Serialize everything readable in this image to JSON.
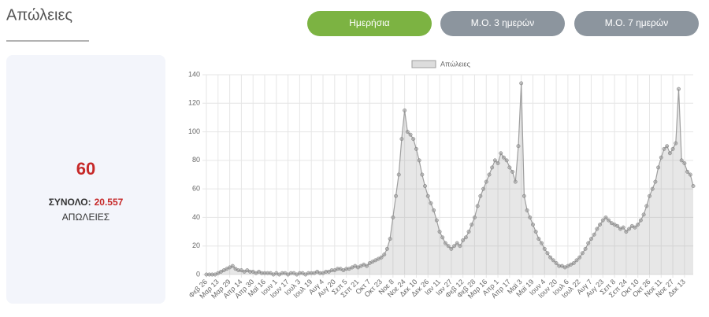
{
  "header": {
    "title": "Απώλειες"
  },
  "buttons": [
    {
      "label": "Ημερήσια",
      "active": true
    },
    {
      "label": "Μ.Ο. 3 ημερών",
      "active": false
    },
    {
      "label": "Μ.Ο. 7 ημερών",
      "active": false
    }
  ],
  "summary": {
    "latest": 60,
    "total_label": "ΣΥΝΟΛΟ:",
    "total_value": "20.557",
    "unit": "ΑΠΩΛΕΙΕΣ"
  },
  "chart_data": {
    "type": "line",
    "fill": true,
    "grid": true,
    "legend": "top",
    "categories": [
      "Φεβ 26",
      null,
      null,
      null,
      "Μαρ 13",
      null,
      null,
      null,
      "Μαρ 29",
      null,
      null,
      null,
      "Απρ 14",
      null,
      null,
      null,
      "Απρ 30",
      null,
      null,
      null,
      "Μαϊ 16",
      null,
      null,
      null,
      "Ιουν 1",
      null,
      null,
      null,
      "Ιουν 17",
      null,
      null,
      null,
      "Ιουλ 3",
      null,
      null,
      null,
      "Ιουλ 19",
      null,
      null,
      null,
      "Αυγ 4",
      null,
      null,
      null,
      "Αυγ 20",
      null,
      null,
      null,
      "Σεπ 5",
      null,
      null,
      null,
      "Σεπ 21",
      null,
      null,
      null,
      "Οκτ 7",
      null,
      null,
      null,
      "Οκτ 23",
      null,
      null,
      null,
      "Νοε 8",
      null,
      null,
      null,
      "Νοε 24",
      null,
      null,
      null,
      "Δεκ 10",
      null,
      null,
      null,
      "Δεκ 26",
      null,
      null,
      null,
      "Ιαν 11",
      null,
      null,
      null,
      "Ιαν 27",
      null,
      null,
      null,
      "Φεβ 12",
      null,
      null,
      null,
      "Φεβ 28",
      null,
      null,
      null,
      "Μαρ 16",
      null,
      null,
      null,
      "Απρ 1",
      null,
      null,
      null,
      "Απρ 17",
      null,
      null,
      null,
      "Μαϊ 3",
      null,
      null,
      null,
      "Μαϊ 19",
      null,
      null,
      null,
      "Ιουν 4",
      null,
      null,
      null,
      "Ιουν 20",
      null,
      null,
      null,
      "Ιουλ 6",
      null,
      null,
      null,
      "Ιουλ 22",
      null,
      null,
      null,
      "Αυγ 7",
      null,
      null,
      null,
      "Αυγ 23",
      null,
      null,
      null,
      "Σεπ 8",
      null,
      null,
      null,
      "Σεπ 24",
      null,
      null,
      null,
      "Οκτ 10",
      null,
      null,
      null,
      "Οκτ 26",
      null,
      null,
      null,
      "Νοε 11",
      null,
      null,
      null,
      "Νοε 27",
      null,
      null,
      null,
      "Δεκ 13",
      null,
      null,
      null
    ],
    "series": [
      {
        "name": "Απώλειες",
        "color": "#9e9e9e",
        "values": [
          0,
          0,
          0,
          0,
          1,
          2,
          3,
          4,
          5,
          6,
          4,
          3,
          3,
          2,
          3,
          2,
          2,
          1,
          2,
          1,
          1,
          1,
          1,
          0,
          1,
          0,
          1,
          1,
          0,
          1,
          1,
          0,
          1,
          1,
          0,
          1,
          1,
          1,
          2,
          1,
          1,
          2,
          2,
          3,
          3,
          4,
          4,
          3,
          4,
          4,
          5,
          6,
          5,
          6,
          7,
          6,
          8,
          9,
          10,
          11,
          12,
          14,
          18,
          25,
          40,
          55,
          70,
          95,
          115,
          100,
          98,
          95,
          88,
          80,
          70,
          62,
          55,
          50,
          45,
          38,
          30,
          26,
          22,
          20,
          18,
          20,
          22,
          20,
          24,
          26,
          30,
          35,
          40,
          48,
          55,
          60,
          65,
          70,
          75,
          80,
          78,
          85,
          82,
          80,
          75,
          72,
          65,
          90,
          134,
          55,
          45,
          40,
          35,
          30,
          25,
          22,
          18,
          15,
          12,
          10,
          8,
          6,
          6,
          5,
          6,
          7,
          8,
          10,
          12,
          15,
          18,
          22,
          25,
          28,
          32,
          35,
          38,
          40,
          38,
          36,
          35,
          34,
          32,
          33,
          30,
          32,
          34,
          33,
          35,
          38,
          42,
          48,
          55,
          60,
          65,
          75,
          82,
          88,
          90,
          85,
          88,
          92,
          130,
          80,
          78,
          72,
          70,
          62
        ]
      }
    ],
    "ylim": [
      0,
      140
    ],
    "yticks": [
      0,
      20,
      40,
      60,
      80,
      100,
      120,
      140
    ]
  }
}
